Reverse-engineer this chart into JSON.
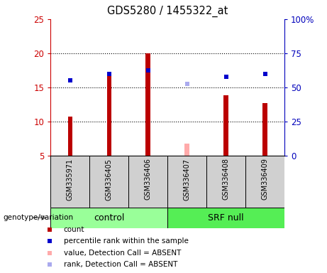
{
  "title": "GDS5280 / 1455322_at",
  "samples": [
    "GSM335971",
    "GSM336405",
    "GSM336406",
    "GSM336407",
    "GSM336408",
    "GSM336409"
  ],
  "count_values": [
    10.7,
    16.8,
    20.0,
    null,
    13.8,
    12.7
  ],
  "count_absent_values": [
    null,
    null,
    null,
    6.8,
    null,
    null
  ],
  "percentile_values": [
    16.0,
    17.0,
    17.5,
    null,
    16.5,
    17.0
  ],
  "percentile_absent_values": [
    null,
    null,
    null,
    15.5,
    null,
    null
  ],
  "ylim_left": [
    5,
    25
  ],
  "ylim_right": [
    0,
    100
  ],
  "yticks_left": [
    5,
    10,
    15,
    20,
    25
  ],
  "yticks_right": [
    0,
    25,
    50,
    75,
    100
  ],
  "ytick_labels_left": [
    "5",
    "10",
    "15",
    "20",
    "25"
  ],
  "ytick_labels_right": [
    "0",
    "25",
    "50",
    "75",
    "100%"
  ],
  "bar_color": "#bb0000",
  "bar_absent_color": "#ffaaaa",
  "dot_color": "#0000cc",
  "dot_absent_color": "#aaaaee",
  "left_axis_color": "#cc0000",
  "right_axis_color": "#0000bb",
  "bar_width": 0.12,
  "dot_size": 25,
  "group_label_y": "genotype/variation",
  "ctrl_color": "#99ff99",
  "srf_color": "#55ee55",
  "sample_box_color": "#d0d0d0",
  "grid_yticks": [
    10,
    15,
    20
  ]
}
